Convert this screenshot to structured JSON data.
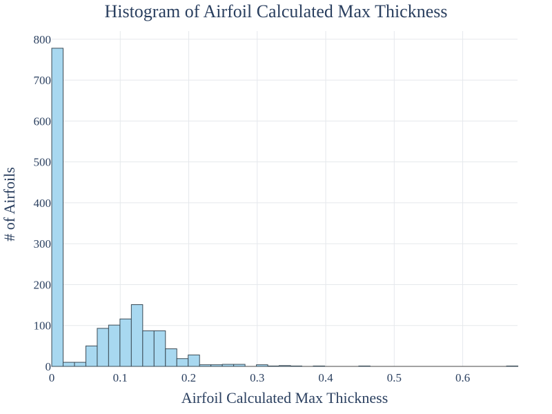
{
  "chart_data": {
    "type": "bar",
    "title": "Histogram of Airfoil Calculated Max Thickness",
    "xlabel": "Airfoil Calculated Max Thickness",
    "ylabel": "# of Airfoils",
    "xlim": [
      0,
      0.68
    ],
    "ylim": [
      0,
      820
    ],
    "grid": true,
    "bin_width": 0.0166,
    "x_ticks": [
      "0",
      "0.1",
      "0.2",
      "0.3",
      "0.4",
      "0.5",
      "0.6"
    ],
    "x_tick_values": [
      0,
      0.1,
      0.2,
      0.3,
      0.4,
      0.5,
      0.6
    ],
    "y_ticks": [
      "0",
      "100",
      "200",
      "300",
      "400",
      "500",
      "600",
      "700",
      "800"
    ],
    "y_tick_values": [
      0,
      100,
      200,
      300,
      400,
      500,
      600,
      700,
      800
    ],
    "bins": [
      {
        "x0": 0.0,
        "count": 778
      },
      {
        "x0": 0.0166,
        "count": 10
      },
      {
        "x0": 0.0332,
        "count": 10
      },
      {
        "x0": 0.0498,
        "count": 50
      },
      {
        "x0": 0.0664,
        "count": 93
      },
      {
        "x0": 0.083,
        "count": 101
      },
      {
        "x0": 0.0996,
        "count": 116
      },
      {
        "x0": 0.1162,
        "count": 151
      },
      {
        "x0": 0.1328,
        "count": 87
      },
      {
        "x0": 0.1494,
        "count": 87
      },
      {
        "x0": 0.166,
        "count": 43
      },
      {
        "x0": 0.1826,
        "count": 19
      },
      {
        "x0": 0.1992,
        "count": 28
      },
      {
        "x0": 0.2158,
        "count": 4
      },
      {
        "x0": 0.2324,
        "count": 4
      },
      {
        "x0": 0.249,
        "count": 5
      },
      {
        "x0": 0.2656,
        "count": 5
      },
      {
        "x0": 0.2988,
        "count": 4
      },
      {
        "x0": 0.3154,
        "count": 1
      },
      {
        "x0": 0.332,
        "count": 2
      },
      {
        "x0": 0.3486,
        "count": 1
      },
      {
        "x0": 0.3818,
        "count": 1
      },
      {
        "x0": 0.4482,
        "count": 1
      },
      {
        "x0": 0.664,
        "count": 1
      }
    ],
    "colors": {
      "bar_fill": "#a8d8f0",
      "bar_stroke": "#3a4a55",
      "grid": "#e5e8ec",
      "axis_text": "#2a3f5f"
    }
  }
}
